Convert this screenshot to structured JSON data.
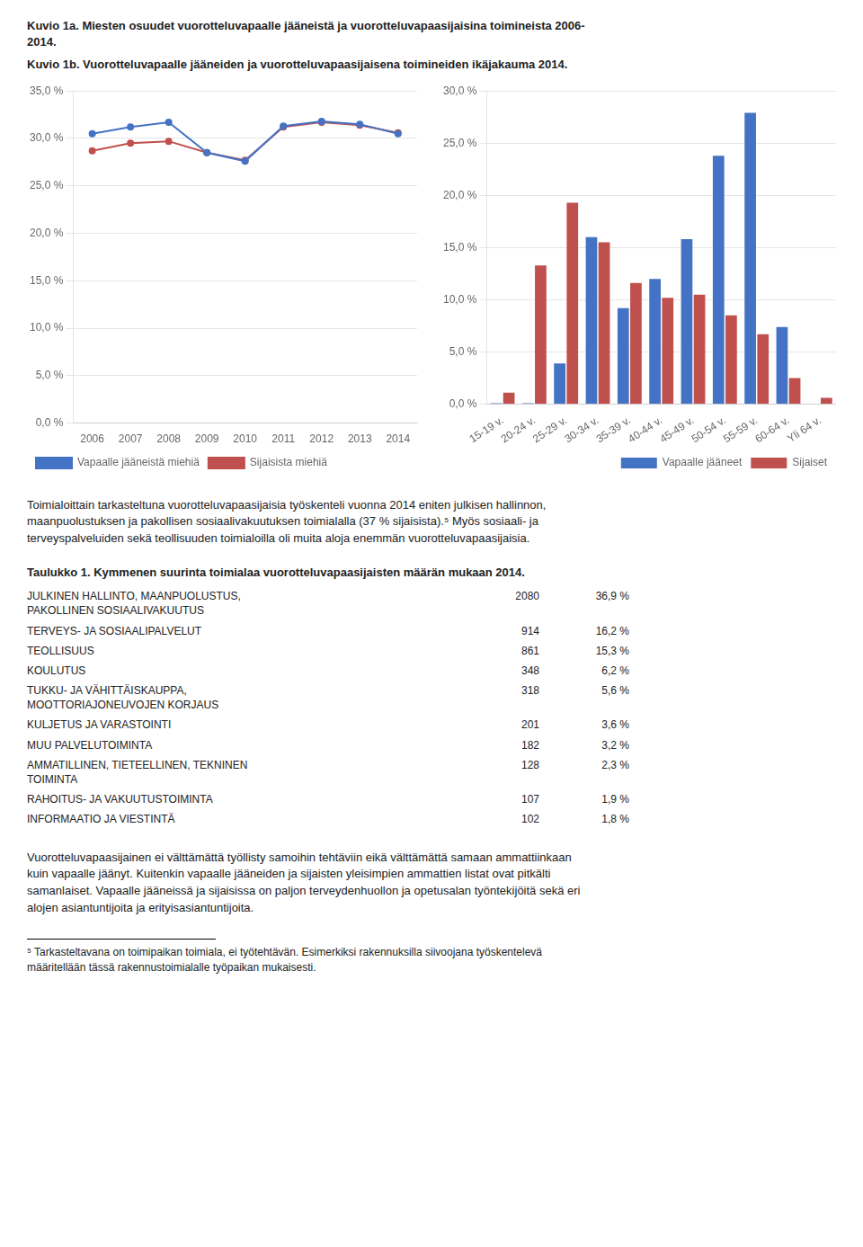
{
  "chart_data": [
    {
      "type": "line",
      "title": "Kuvio 1a. Miesten osuudet vuorotteluvapaalle jääneistä ja vuorotteluvapaasijaisina toimineista 2006-\n2014.",
      "x": [
        2006,
        2007,
        2008,
        2009,
        2010,
        2011,
        2012,
        2013,
        2014
      ],
      "xlim": [
        2005.5,
        2014.5
      ],
      "xticks": [
        2006,
        2007,
        2008,
        2009,
        2010,
        2011,
        2012,
        2013,
        2014
      ],
      "ylim": [
        0.0,
        35.0
      ],
      "yticks": [
        {
          "value": 0.0,
          "label": "0,0 %"
        },
        {
          "value": 5.0,
          "label": "5,0 %"
        },
        {
          "value": 10.0,
          "label": "10,0 %"
        },
        {
          "value": 15.0,
          "label": "15,0 %"
        },
        {
          "value": 20.0,
          "label": "20,0 %"
        },
        {
          "value": 25.0,
          "label": "25,0 %"
        },
        {
          "value": 30.0,
          "label": "30,0 %"
        },
        {
          "value": 35.0,
          "label": "35,0 %"
        }
      ],
      "grid": "y",
      "legend": "lower left",
      "marker": "circle",
      "series": [
        {
          "name": "Vapaalle jääneistä miehiä",
          "color": "#4472C4",
          "values": [
            30.5,
            31.2,
            31.7,
            28.5,
            27.6,
            31.3,
            31.8,
            31.5,
            30.5
          ]
        },
        {
          "name": "Sijaisista miehiä",
          "color": "#C0504D",
          "values": [
            28.7,
            29.5,
            29.7,
            28.5,
            27.7,
            31.2,
            31.7,
            31.4,
            30.6
          ]
        }
      ]
    },
    {
      "type": "bar",
      "title": "Kuvio 1b. Vuorotteluvapaalle jääneiden ja vuorotteluvapaasijaisena toimineiden ikäjakauma 2014.",
      "categories": [
        "15-19 v.",
        "20-24 v.",
        "25-29 v.",
        "30-34 v.",
        "35-39 v.",
        "40-44 v.",
        "45-49 v.",
        "50-54 v.",
        "55-59 v.",
        "60-64 v.",
        "Yli 64 v."
      ],
      "ylim": [
        0.0,
        30.0
      ],
      "yticks": [
        {
          "value": 0.0,
          "label": "0,0 %"
        },
        {
          "value": 5.0,
          "label": "5,0 %"
        },
        {
          "value": 10.0,
          "label": "10,0 %"
        },
        {
          "value": 15.0,
          "label": "15,0 %"
        },
        {
          "value": 20.0,
          "label": "20,0 %"
        },
        {
          "value": 25.0,
          "label": "25,0 %"
        },
        {
          "value": 30.0,
          "label": "30,0 %"
        }
      ],
      "grid": "y",
      "legend": "lower right",
      "series": [
        {
          "name": "Vapaalle jääneet",
          "color": "#4472C4",
          "values": [
            0.1,
            0.1,
            3.9,
            16.0,
            9.2,
            12.0,
            15.8,
            23.8,
            27.9,
            7.4,
            0.0
          ]
        },
        {
          "name": "Sijaiset",
          "color": "#C0504D",
          "values": [
            1.1,
            13.3,
            19.3,
            15.5,
            11.6,
            10.2,
            10.5,
            8.5,
            6.7,
            2.5,
            0.6
          ]
        }
      ]
    }
  ],
  "text_before": "Toimialoittain tarkasteltuna vuorotteluvapaasijaisia työskenteli vuonna 2014 eniten julkisen hallinnon,\nmaanpuolustuksen ja pakollisen sosiaalivakuutuksen toimialalla (37 % sijaisista).⁵ Myös sosiaali- ja\nterveyspalveluiden sekä teollisuuden toimialoilla oli muita aloja enemmän vuorotteluvapaasijaisia.",
  "table": {
    "title": "Taulukko 1. Kymmenen suurinta toimialaa vuorotteluvapaasijaisten määrän mukaan 2014.",
    "rows": [
      {
        "name": "JULKINEN HALLINTO, MAANPUOLUSTUS,\nPAKOLLINEN SOSIAALIVAKUUTUS",
        "value": 2080,
        "share": {
          "value": 36.9,
          "label": "36,9 %"
        }
      },
      {
        "name": "TERVEYS- JA SOSIAALIPALVELUT",
        "value": 914,
        "share": {
          "value": 16.2,
          "label": "16,2 %"
        }
      },
      {
        "name": "TEOLLISUUS",
        "value": 861,
        "share": {
          "value": 15.3,
          "label": "15,3 %"
        }
      },
      {
        "name": "KOULUTUS",
        "value": 348,
        "share": {
          "value": 6.2,
          "label": "6,2 %"
        }
      },
      {
        "name": "TUKKU- JA VÄHITTÄISKAUPPA,\nMOOTTORIAJONEUVOJEN KORJAUS",
        "value": 318,
        "share": {
          "value": 5.6,
          "label": "5,6 %"
        }
      },
      {
        "name": "KULJETUS JA VARASTOINTI",
        "value": 201,
        "share": {
          "value": 3.6,
          "label": "3,6 %"
        }
      },
      {
        "name": "MUU PALVELUTOIMINTA",
        "value": 182,
        "share": {
          "value": 3.2,
          "label": "3,2 %"
        }
      },
      {
        "name": "AMMATILLINEN, TIETEELLINEN, TEKNINEN\nTOIMINTA",
        "value": 128,
        "share": {
          "value": 2.3,
          "label": "2,3 %"
        }
      },
      {
        "name": "RAHOITUS- JA VAKUUTUSTOIMINTA",
        "value": 107,
        "share": {
          "value": 1.9,
          "label": "1,9 %"
        }
      },
      {
        "name": "INFORMAATIO JA VIESTINTÄ",
        "value": 102,
        "share": {
          "value": 1.8,
          "label": "1,8 %"
        }
      }
    ]
  },
  "text_after": "Vuorotteluvapaasijainen ei välttämättä työllisty samoihin tehtäviin eikä välttämättä samaan ammattiinkaan\nkuin vapaalle jäänyt. Kuitenkin vapaalle jääneiden ja sijaisten yleisimpien ammattien listat ovat pitkälti\nsamanlaiset. Vapaalle jääneissä ja sijaisissa on paljon terveydenhuollon ja opetusalan työntekijöitä sekä eri\nalojen asiantuntijoita ja erityisasiantuntijoita.",
  "footnote": "⁵ Tarkasteltavana on toimipaikan toimiala, ei työtehtävän. Esimerkiksi rakennuksilla siivoojana työskentelevä\nmääritellään tässä rakennustoimialalle työpaikan mukaisesti."
}
